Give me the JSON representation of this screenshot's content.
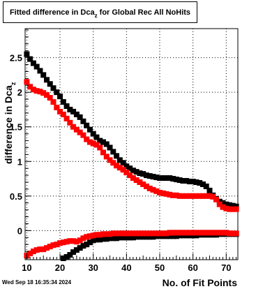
{
  "header": {
    "title_main": "Fitted difference in Dca",
    "title_sub": "z",
    "title_tail": "  for Global Rec All NoHits"
  },
  "footer": {
    "timestamp": "Wed Sep 18 16:35:34 2024"
  },
  "chart_data": {
    "type": "scatter",
    "xlabel": "No. of Fit Points",
    "ylabel_main": "difference in Dca",
    "ylabel_sub": "z",
    "xlim": [
      9.5,
      73.5
    ],
    "ylim": [
      -0.42,
      2.92
    ],
    "grid": true,
    "x_ticks": [
      10,
      20,
      30,
      40,
      50,
      60,
      70
    ],
    "y_ticks": [
      0,
      0.5,
      1,
      1.5,
      2,
      2.5
    ],
    "y_tick_labels": [
      "0",
      "0.5",
      "1",
      "1.5",
      "2",
      "2.5"
    ],
    "series": [
      {
        "color": "#000000",
        "x": [
          10,
          11,
          12,
          13,
          14,
          15,
          16,
          17,
          18,
          19,
          20,
          21,
          22,
          23,
          24,
          25,
          26,
          27,
          28,
          29,
          30,
          31,
          32,
          33,
          34,
          35,
          36,
          37,
          38,
          39,
          40,
          41,
          42,
          43,
          44,
          45,
          46,
          47,
          48,
          49,
          50,
          51,
          52,
          53,
          54,
          55,
          56,
          57,
          58,
          59,
          60,
          61,
          62,
          63,
          64,
          65,
          66,
          67,
          68,
          69,
          70,
          71,
          72,
          73
        ],
        "y": [
          2.55,
          2.48,
          2.42,
          2.37,
          2.31,
          2.25,
          2.18,
          2.12,
          2.06,
          2.0,
          1.94,
          1.86,
          1.8,
          1.75,
          1.72,
          1.68,
          1.64,
          1.58,
          1.52,
          1.46,
          1.4,
          1.35,
          1.3,
          1.28,
          1.25,
          1.2,
          1.14,
          1.08,
          1.02,
          0.98,
          0.93,
          0.9,
          0.87,
          0.85,
          0.83,
          0.82,
          0.8,
          0.79,
          0.78,
          0.77,
          0.76,
          0.76,
          0.76,
          0.76,
          0.75,
          0.74,
          0.73,
          0.72,
          0.72,
          0.71,
          0.71,
          0.7,
          0.69,
          0.67,
          0.64,
          0.58,
          0.51,
          0.46,
          0.42,
          0.4,
          0.38,
          0.37,
          0.36,
          0.35
        ]
      },
      {
        "color": "#ff0000",
        "x": [
          10,
          11,
          12,
          13,
          14,
          15,
          16,
          17,
          18,
          19,
          20,
          21,
          22,
          23,
          24,
          25,
          26,
          27,
          28,
          29,
          30,
          31,
          32,
          33,
          34,
          35,
          36,
          37,
          38,
          39,
          40,
          41,
          42,
          43,
          44,
          45,
          46,
          47,
          48,
          49,
          50,
          51,
          52,
          53,
          54,
          55,
          56,
          57,
          58,
          59,
          60,
          61,
          62,
          63,
          64,
          65,
          66,
          67,
          68,
          69,
          70,
          71,
          72,
          73
        ],
        "y": [
          2.15,
          2.08,
          2.04,
          2.02,
          2.01,
          1.99,
          1.96,
          1.92,
          1.86,
          1.78,
          1.72,
          1.68,
          1.62,
          1.56,
          1.5,
          1.46,
          1.42,
          1.38,
          1.32,
          1.28,
          1.26,
          1.24,
          1.2,
          1.13,
          1.07,
          1.02,
          0.98,
          0.94,
          0.91,
          0.88,
          0.84,
          0.8,
          0.76,
          0.73,
          0.7,
          0.67,
          0.64,
          0.61,
          0.59,
          0.57,
          0.55,
          0.54,
          0.53,
          0.52,
          0.51,
          0.51,
          0.5,
          0.5,
          0.5,
          0.5,
          0.5,
          0.5,
          0.5,
          0.5,
          0.5,
          0.5,
          0.49,
          0.45,
          0.38,
          0.34,
          0.32,
          0.31,
          0.31,
          0.31
        ]
      },
      {
        "color": "#000000",
        "x": [
          21,
          22,
          23,
          24,
          25,
          26,
          27,
          28,
          29,
          30,
          31,
          32,
          33,
          34,
          35,
          36,
          37,
          38,
          39,
          40,
          41,
          42,
          43,
          44,
          45,
          46,
          47,
          48,
          49,
          50,
          51,
          52,
          53,
          54,
          55,
          56,
          57,
          58,
          59,
          60,
          61,
          62,
          63,
          64,
          65,
          66,
          67,
          68,
          69,
          70,
          71,
          72,
          73
        ],
        "y": [
          -0.4,
          -0.38,
          -0.35,
          -0.31,
          -0.28,
          -0.25,
          -0.22,
          -0.2,
          -0.17,
          -0.14,
          -0.13,
          -0.13,
          -0.12,
          -0.12,
          -0.11,
          -0.11,
          -0.11,
          -0.1,
          -0.1,
          -0.1,
          -0.1,
          -0.1,
          -0.09,
          -0.09,
          -0.09,
          -0.09,
          -0.09,
          -0.09,
          -0.08,
          -0.08,
          -0.08,
          -0.08,
          -0.08,
          -0.08,
          -0.08,
          -0.07,
          -0.07,
          -0.07,
          -0.07,
          -0.07,
          -0.07,
          -0.06,
          -0.06,
          -0.06,
          -0.06,
          -0.06,
          -0.06,
          -0.05,
          -0.05,
          -0.05,
          -0.05,
          -0.05,
          -0.05
        ]
      },
      {
        "color": "#ff0000",
        "x": [
          10,
          11,
          12,
          13,
          14,
          15,
          16,
          17,
          18,
          19,
          20,
          21,
          22,
          23,
          24,
          25,
          26,
          27,
          28,
          29,
          30,
          31,
          32,
          33,
          34,
          35,
          36,
          37,
          38,
          39,
          40,
          41,
          42,
          43,
          44,
          45,
          46,
          47,
          48,
          49,
          50,
          51,
          52,
          53,
          54,
          55,
          56,
          57,
          58,
          59,
          60,
          61,
          62,
          63,
          64,
          65,
          66,
          67,
          68,
          69,
          70,
          71,
          72,
          73
        ],
        "y": [
          -0.36,
          -0.33,
          -0.3,
          -0.28,
          -0.27,
          -0.27,
          -0.25,
          -0.23,
          -0.21,
          -0.2,
          -0.18,
          -0.17,
          -0.16,
          -0.15,
          -0.15,
          -0.16,
          -0.14,
          -0.11,
          -0.09,
          -0.08,
          -0.07,
          -0.06,
          -0.06,
          -0.05,
          -0.05,
          -0.05,
          -0.04,
          -0.04,
          -0.04,
          -0.04,
          -0.04,
          -0.04,
          -0.04,
          -0.04,
          -0.04,
          -0.04,
          -0.04,
          -0.04,
          -0.04,
          -0.04,
          -0.04,
          -0.04,
          -0.04,
          -0.03,
          -0.03,
          -0.03,
          -0.03,
          -0.03,
          -0.03,
          -0.03,
          -0.03,
          -0.03,
          -0.03,
          -0.03,
          -0.03,
          -0.03,
          -0.03,
          -0.03,
          -0.03,
          -0.03,
          -0.03,
          -0.04,
          -0.04,
          -0.04
        ]
      }
    ]
  }
}
